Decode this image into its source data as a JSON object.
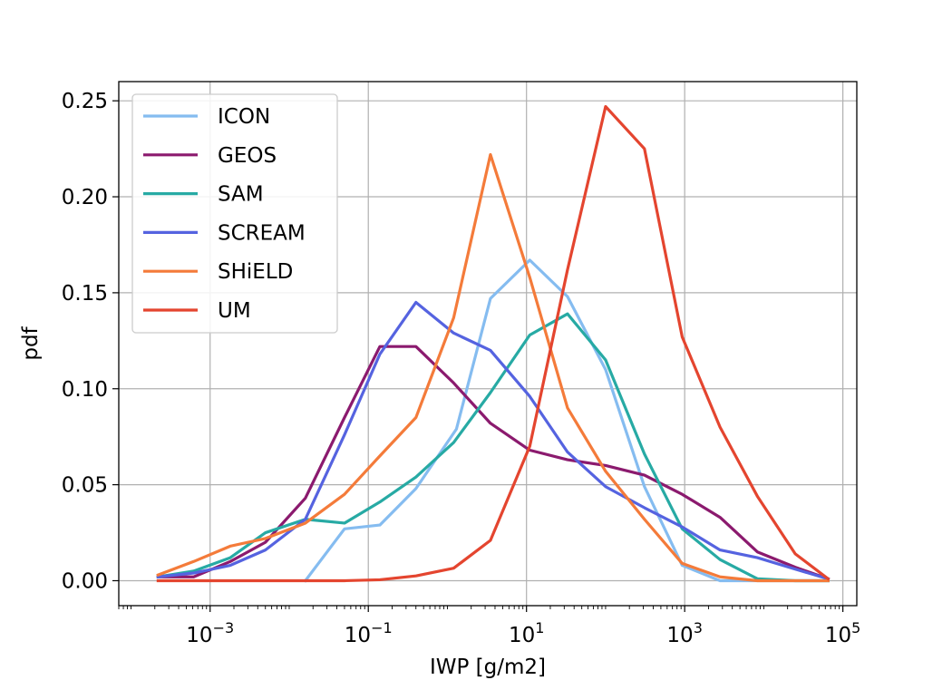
{
  "chart_data": {
    "type": "line",
    "title": "",
    "xlabel": "IWP [g/m2]",
    "ylabel": "pdf",
    "xscale": "log",
    "xlim": [
      7e-05,
      150000
    ],
    "ylim": [
      -0.013,
      0.26
    ],
    "grid": true,
    "legend_position": "top-left",
    "x_ticks": [
      {
        "base": "10",
        "exp": "−3",
        "value": 0.001
      },
      {
        "base": "10",
        "exp": "−1",
        "value": 0.1
      },
      {
        "base": "10",
        "exp": "1",
        "value": 10
      },
      {
        "base": "10",
        "exp": "3",
        "value": 1000
      },
      {
        "base": "10",
        "exp": "5",
        "value": 100000
      }
    ],
    "y_ticks": [
      {
        "label": "0.00",
        "value": 0.0
      },
      {
        "label": "0.05",
        "value": 0.05
      },
      {
        "label": "0.10",
        "value": 0.1
      },
      {
        "label": "0.15",
        "value": 0.15
      },
      {
        "label": "0.20",
        "value": 0.2
      },
      {
        "label": "0.25",
        "value": 0.25
      }
    ],
    "x": [
      0.00021,
      0.00069,
      0.0023,
      0.0075,
      0.025,
      0.082,
      0.27,
      0.88,
      2.9,
      9.5,
      31,
      100,
      340,
      1100,
      3600,
      12000,
      38000,
      70000
    ],
    "series": [
      {
        "name": "ICON",
        "color": "#85bcf0",
        "points": [
          [
            0.016,
            0.0
          ],
          [
            0.05,
            0.027
          ],
          [
            0.14,
            0.029
          ],
          [
            0.4,
            0.048
          ],
          [
            1.3,
            0.079
          ],
          [
            3.5,
            0.147
          ],
          [
            11,
            0.167
          ],
          [
            33,
            0.148
          ],
          [
            100,
            0.11
          ],
          [
            310,
            0.049
          ],
          [
            930,
            0.008
          ],
          [
            2800,
            0.0
          ],
          [
            8300,
            0.0
          ],
          [
            25000,
            0.0
          ],
          [
            65000,
            0.0
          ]
        ]
      },
      {
        "name": "GEOS",
        "color": "#8b1a6e",
        "points": [
          [
            0.00022,
            0.002
          ],
          [
            0.00062,
            0.002
          ],
          [
            0.0018,
            0.01
          ],
          [
            0.005,
            0.02
          ],
          [
            0.016,
            0.043
          ],
          [
            0.05,
            0.085
          ],
          [
            0.14,
            0.122
          ],
          [
            0.4,
            0.122
          ],
          [
            1.2,
            0.103
          ],
          [
            3.5,
            0.082
          ],
          [
            11,
            0.068
          ],
          [
            33,
            0.063
          ],
          [
            100,
            0.06
          ],
          [
            310,
            0.055
          ],
          [
            930,
            0.045
          ],
          [
            2800,
            0.033
          ],
          [
            8300,
            0.015
          ],
          [
            25000,
            0.007
          ],
          [
            65000,
            0.001
          ]
        ]
      },
      {
        "name": "SAM",
        "color": "#27aaa4",
        "points": [
          [
            0.00022,
            0.002
          ],
          [
            0.00062,
            0.005
          ],
          [
            0.0018,
            0.012
          ],
          [
            0.005,
            0.025
          ],
          [
            0.016,
            0.032
          ],
          [
            0.05,
            0.03
          ],
          [
            0.14,
            0.041
          ],
          [
            0.4,
            0.054
          ],
          [
            1.2,
            0.072
          ],
          [
            3.5,
            0.098
          ],
          [
            11,
            0.128
          ],
          [
            33,
            0.139
          ],
          [
            100,
            0.115
          ],
          [
            310,
            0.066
          ],
          [
            930,
            0.027
          ],
          [
            2800,
            0.011
          ],
          [
            8300,
            0.001
          ],
          [
            25000,
            0.0
          ],
          [
            65000,
            0.0
          ]
        ]
      },
      {
        "name": "SCREAM",
        "color": "#5563e0",
        "points": [
          [
            0.00022,
            0.002
          ],
          [
            0.00062,
            0.004
          ],
          [
            0.0018,
            0.008
          ],
          [
            0.005,
            0.016
          ],
          [
            0.016,
            0.032
          ],
          [
            0.05,
            0.076
          ],
          [
            0.14,
            0.118
          ],
          [
            0.4,
            0.145
          ],
          [
            1.2,
            0.129
          ],
          [
            3.5,
            0.12
          ],
          [
            11,
            0.096
          ],
          [
            33,
            0.067
          ],
          [
            100,
            0.049
          ],
          [
            310,
            0.038
          ],
          [
            930,
            0.028
          ],
          [
            2800,
            0.016
          ],
          [
            8300,
            0.012
          ],
          [
            25000,
            0.006
          ],
          [
            65000,
            0.001
          ]
        ]
      },
      {
        "name": "SHiELD",
        "color": "#f47b3a",
        "points": [
          [
            0.00022,
            0.003
          ],
          [
            0.00062,
            0.01
          ],
          [
            0.0018,
            0.018
          ],
          [
            0.005,
            0.022
          ],
          [
            0.016,
            0.03
          ],
          [
            0.05,
            0.045
          ],
          [
            0.14,
            0.065
          ],
          [
            0.4,
            0.085
          ],
          [
            1.2,
            0.137
          ],
          [
            3.5,
            0.222
          ],
          [
            11,
            0.158
          ],
          [
            33,
            0.09
          ],
          [
            100,
            0.057
          ],
          [
            310,
            0.032
          ],
          [
            930,
            0.009
          ],
          [
            2800,
            0.002
          ],
          [
            8300,
            0.0
          ],
          [
            25000,
            0.0
          ],
          [
            65000,
            0.0
          ]
        ]
      },
      {
        "name": "UM",
        "color": "#e4452f",
        "points": [
          [
            0.00022,
            0.0
          ],
          [
            0.00062,
            0.0
          ],
          [
            0.0018,
            0.0
          ],
          [
            0.005,
            0.0
          ],
          [
            0.016,
            0.0
          ],
          [
            0.05,
            0.0
          ],
          [
            0.14,
            0.0005
          ],
          [
            0.4,
            0.0025
          ],
          [
            1.2,
            0.0065
          ],
          [
            3.5,
            0.021
          ],
          [
            11,
            0.07
          ],
          [
            33,
            0.162
          ],
          [
            100,
            0.247
          ],
          [
            310,
            0.225
          ],
          [
            930,
            0.127
          ],
          [
            2800,
            0.08
          ],
          [
            8300,
            0.044
          ],
          [
            25000,
            0.014
          ],
          [
            65000,
            0.001
          ]
        ]
      }
    ]
  }
}
